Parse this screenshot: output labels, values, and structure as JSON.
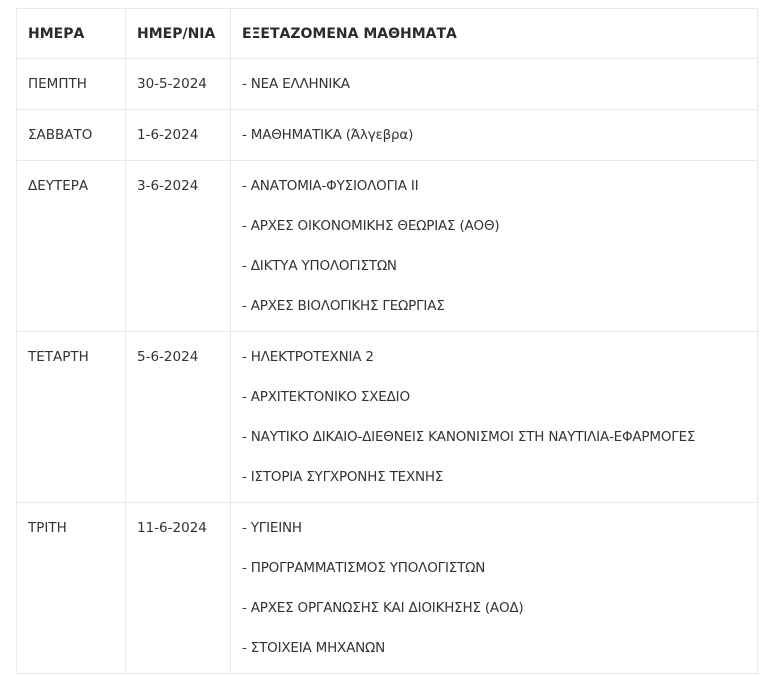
{
  "headers": [
    "ΗΜΕΡΑ",
    "ΗΜΕΡ/ΝΙΑ",
    "ΕΞΕΤΑΖΟΜΕΝΑ ΜΑΘΗΜΑΤΑ"
  ],
  "rows": [
    {
      "day": "ΠΕΜΠΤΗ",
      "date": "30-5-2024",
      "subjects": [
        "- ΝΕΑ ΕΛΛΗΝΙΚΑ"
      ]
    },
    {
      "day": "ΣΑΒΒΑΤΟ",
      "date": "1-6-2024",
      "subjects": [
        "- ΜΑΘΗΜΑΤΙΚΑ (Άλγεβρα)"
      ]
    },
    {
      "day": "ΔΕΥΤΕΡΑ",
      "date": "3-6-2024",
      "subjects": [
        "- ΑΝΑΤΟΜΙΑ-ΦΥΣΙΟΛΟΓΙΑ ΙΙ",
        "- ΑΡΧΕΣ ΟΙΚΟΝΟΜΙΚΗΣ ΘΕΩΡΙΑΣ (ΑΟΘ)",
        "- ΔΙΚΤΥΑ ΥΠΟΛΟΓΙΣΤΩΝ",
        "- ΑΡΧΕΣ ΒΙΟΛΟΓΙΚΗΣ ΓΕΩΡΓΙΑΣ"
      ]
    },
    {
      "day": "ΤΕΤΑΡΤΗ",
      "date": "5-6-2024",
      "subjects": [
        "- ΗΛΕΚΤΡΟΤΕΧΝΙΑ 2",
        "- ΑΡΧΙΤΕΚΤΟΝΙΚΟ ΣΧΕΔΙΟ",
        "- ΝΑΥΤΙΚΟ ΔΙΚΑΙΟ-ΔΙΕΘΝΕΙΣ ΚΑΝΟΝΙΣΜΟΙ ΣΤΗ ΝΑΥΤΙΛΙΑ-ΕΦΑΡΜΟΓΕΣ",
        "- ΙΣΤΟΡΙΑ ΣΥΓΧΡΟΝΗΣ ΤΕΧΝΗΣ"
      ]
    },
    {
      "day": "ΤΡΙΤΗ",
      "date": "11-6-2024",
      "subjects": [
        "- ΥΓΙΕΙΝΗ",
        "- ΠΡΟΓΡΑΜΜΑΤΙΣΜΟΣ ΥΠΟΛΟΓΙΣΤΩΝ",
        "- ΑΡΧΕΣ ΟΡΓΑΝΩΣΗΣ ΚΑΙ ΔΙΟΙΚΗΣΗΣ (ΑΟΔ)",
        "- ΣΤΟΙΧΕΙΑ ΜΗΧΑΝΩΝ"
      ]
    }
  ]
}
